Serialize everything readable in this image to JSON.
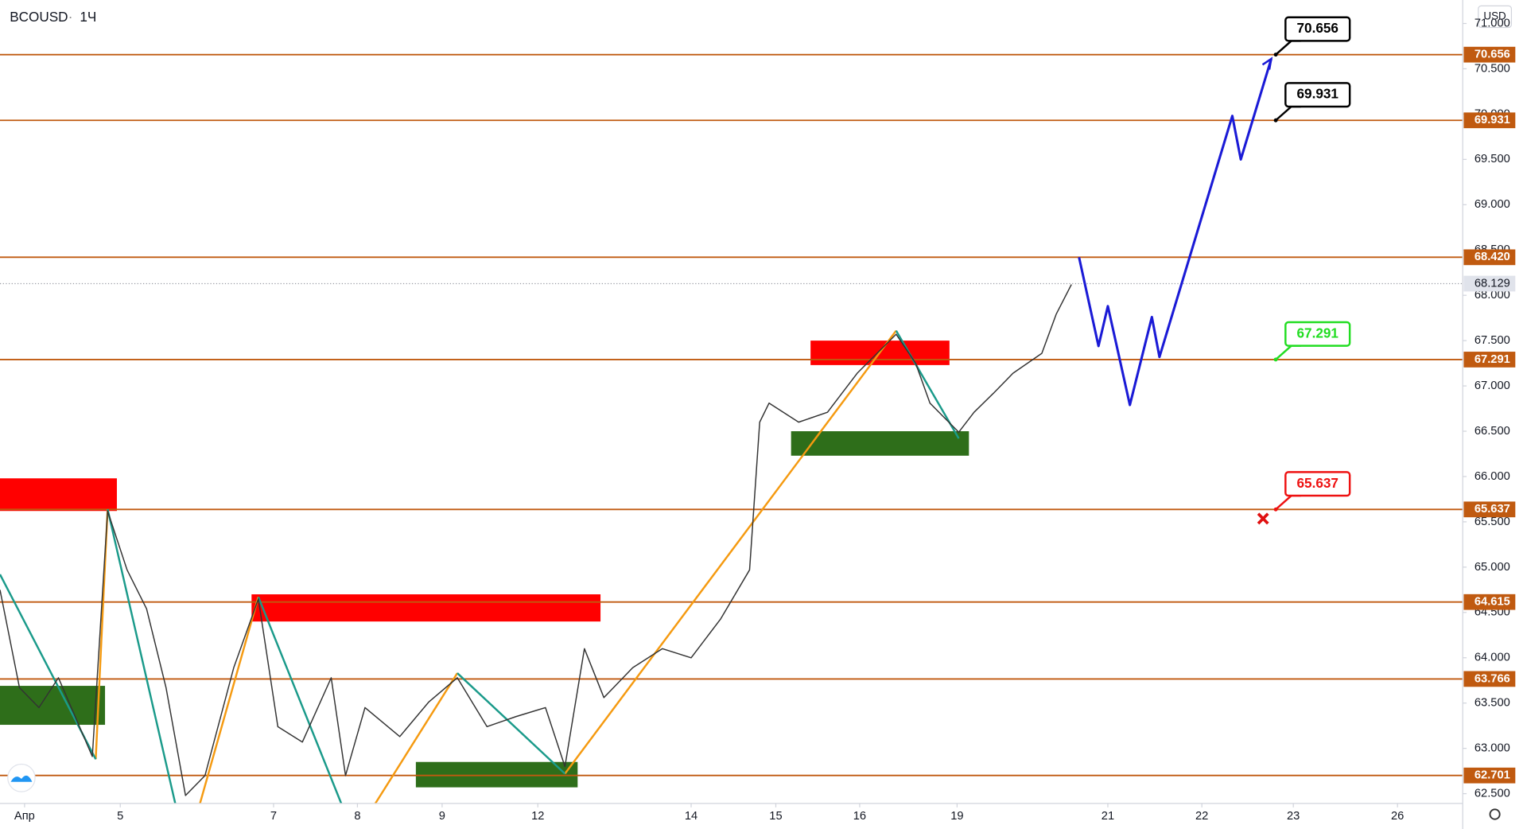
{
  "chart_data": {
    "type": "price-chart",
    "symbol": "BCOUSD",
    "interval": "1Ч",
    "currency": "USD",
    "ylim": [
      62.392,
      71.259
    ],
    "yticks": [
      {
        "value": 62.5,
        "label": "62.500"
      },
      {
        "value": 63,
        "label": "63.000"
      },
      {
        "value": 63.5,
        "label": "63.500"
      },
      {
        "value": 64,
        "label": "64.000"
      },
      {
        "value": 64.5,
        "label": "64.500"
      },
      {
        "value": 65,
        "label": "65.000"
      },
      {
        "value": 65.5,
        "label": "65.500"
      },
      {
        "value": 66,
        "label": "66.000"
      },
      {
        "value": 66.5,
        "label": "66.500"
      },
      {
        "value": 67,
        "label": "67.000"
      },
      {
        "value": 67.5,
        "label": "67.500"
      },
      {
        "value": 68,
        "label": "68.000"
      },
      {
        "value": 68.5,
        "label": "68.500"
      },
      {
        "value": 69,
        "label": "69.000"
      },
      {
        "value": 69.5,
        "label": "69.500"
      },
      {
        "value": 70,
        "label": "70.000"
      },
      {
        "value": 70.5,
        "label": "70.500"
      },
      {
        "value": 71,
        "label": "71.000"
      }
    ],
    "xlim": [
      -0.29,
      16.98
    ],
    "xticks": [
      {
        "value": 0,
        "label": "Апр"
      },
      {
        "value": 1.13,
        "label": "5"
      },
      {
        "value": 2.94,
        "label": "7"
      },
      {
        "value": 3.93,
        "label": "8"
      },
      {
        "value": 4.93,
        "label": "9"
      },
      {
        "value": 6.06,
        "label": "12"
      },
      {
        "value": 7.87,
        "label": "14"
      },
      {
        "value": 8.87,
        "label": "15"
      },
      {
        "value": 9.86,
        "label": "16"
      },
      {
        "value": 11.01,
        "label": "19"
      },
      {
        "value": 12.79,
        "label": "21"
      },
      {
        "value": 13.9,
        "label": "22"
      },
      {
        "value": 14.98,
        "label": "23"
      },
      {
        "value": 16.21,
        "label": "26"
      }
    ],
    "price": {
      "color": "#333333",
      "x": [
        -0.29,
        -0.06,
        0.17,
        0.4,
        0.8,
        0.98,
        1.21,
        1.44,
        1.67,
        1.9,
        2.13,
        2.47,
        2.76,
        2.99,
        3.28,
        3.62,
        3.79,
        4.02,
        4.43,
        4.77,
        5.11,
        5.46,
        5.8,
        6.15,
        6.38,
        6.61,
        6.84,
        7.18,
        7.53,
        7.87,
        8.22,
        8.56,
        8.68,
        8.79,
        9.14,
        9.48,
        9.83,
        10.29,
        10.52,
        10.69,
        11.03,
        11.21,
        11.44,
        11.67,
        12.01,
        12.18,
        12.36
      ],
      "values": [
        64.75,
        63.67,
        63.45,
        63.78,
        62.91,
        65.62,
        64.97,
        64.54,
        63.67,
        62.48,
        62.7,
        63.89,
        64.65,
        63.24,
        63.07,
        63.78,
        62.7,
        63.45,
        63.13,
        63.51,
        63.78,
        63.24,
        63.35,
        63.45,
        62.8,
        64.1,
        63.56,
        63.89,
        64.1,
        64,
        64.43,
        64.97,
        66.6,
        66.81,
        66.6,
        66.71,
        67.14,
        67.57,
        67.25,
        66.81,
        66.49,
        66.71,
        66.92,
        67.14,
        67.36,
        67.79,
        68.12
      ]
    },
    "current_price": 68.129,
    "projection": {
      "color": "#1a1ad6",
      "x": [
        12.45,
        12.68,
        12.79,
        13.05,
        13.31,
        13.4,
        14.26,
        14.36,
        14.72
      ],
      "values": [
        68.42,
        67.44,
        67.88,
        66.79,
        67.76,
        67.32,
        69.98,
        69.5,
        70.61
      ]
    },
    "level_color": "#c05a10",
    "levels": [
      {
        "value": 70.656,
        "callout": "#000000"
      },
      {
        "value": 69.931,
        "callout": "#000000"
      },
      {
        "value": 68.42,
        "label": "68.420"
      },
      {
        "value": 67.291,
        "callout": "#22dd22"
      },
      {
        "value": 65.637,
        "callout": "#ee1111"
      },
      {
        "value": 64.615
      },
      {
        "value": 63.766
      },
      {
        "value": 62.701
      }
    ],
    "zones": [
      {
        "color": "#ff0000",
        "x": [
          -0.29,
          1.09
        ],
        "values": [
          65.62,
          65.98
        ]
      },
      {
        "color": "#ff0000",
        "x": [
          2.68,
          6.8
        ],
        "values": [
          64.4,
          64.7
        ]
      },
      {
        "color": "#ff0000",
        "x": [
          9.28,
          10.92
        ],
        "values": [
          67.23,
          67.5
        ]
      },
      {
        "color": "#2e6e1a",
        "x": [
          -0.29,
          0.95
        ],
        "values": [
          63.26,
          63.69
        ]
      },
      {
        "color": "#2e6e1a",
        "x": [
          4.62,
          6.53
        ],
        "values": [
          62.57,
          62.85
        ]
      },
      {
        "color": "#2e6e1a",
        "x": [
          9.05,
          11.15
        ],
        "values": [
          66.23,
          66.5
        ]
      }
    ],
    "pattern_lines": [
      {
        "color": "#f59a10",
        "x": [
          0.84,
          0.98
        ],
        "values": [
          62.88,
          65.64
        ]
      },
      {
        "color": "#f59a10",
        "x": [
          2.07,
          2.76
        ],
        "values": [
          62.39,
          64.67
        ]
      },
      {
        "color": "#f59a10",
        "x": [
          4.14,
          5.11
        ],
        "values": [
          62.39,
          63.83
        ]
      },
      {
        "color": "#f59a10",
        "x": [
          6.38,
          10.29
        ],
        "values": [
          62.72,
          67.61
        ]
      },
      {
        "color": "#1a9a8a",
        "x": [
          -0.29,
          0.84
        ],
        "values": [
          64.92,
          62.88
        ]
      },
      {
        "color": "#1a9a8a",
        "x": [
          0.98,
          1.78
        ],
        "values": [
          65.64,
          62.39
        ]
      },
      {
        "color": "#1a9a8a",
        "x": [
          2.76,
          3.74
        ],
        "values": [
          64.67,
          62.39
        ]
      },
      {
        "color": "#1a9a8a",
        "x": [
          5.11,
          6.38
        ],
        "values": [
          63.83,
          62.72
        ]
      },
      {
        "color": "#1a9a8a",
        "x": [
          10.29,
          11.03
        ],
        "values": [
          67.61,
          66.42
        ]
      }
    ]
  }
}
